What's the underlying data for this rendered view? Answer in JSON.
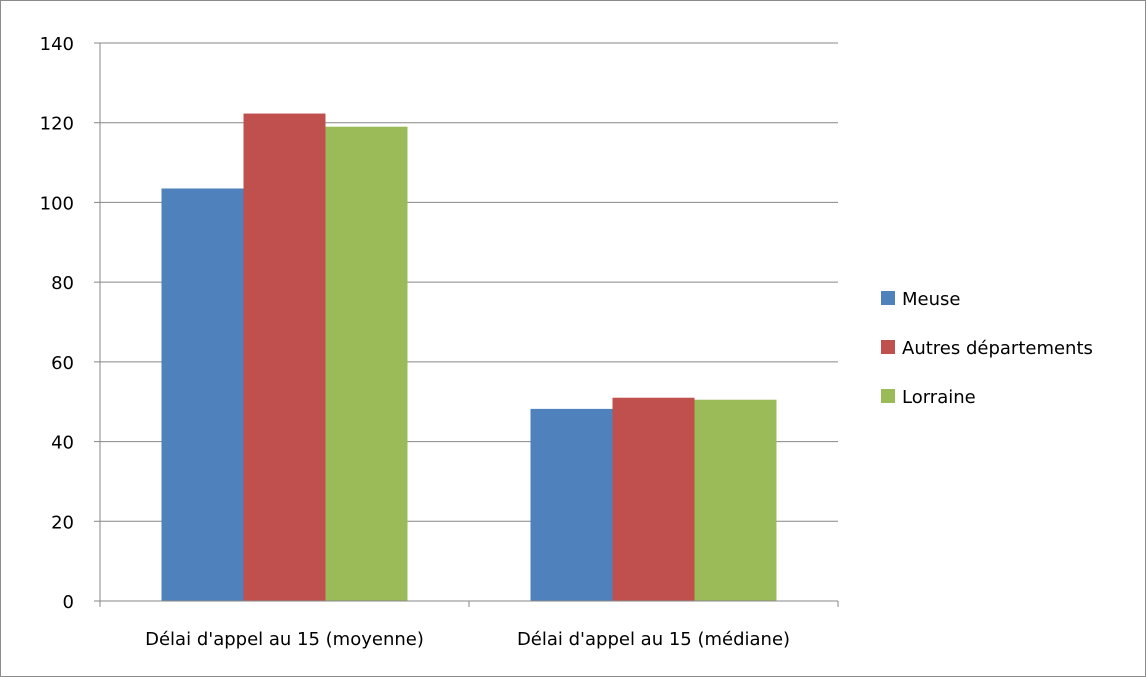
{
  "chart_data": {
    "type": "bar",
    "categories": [
      "Délai d'appel au 15 (moyenne)",
      "Délai d'appel au 15 (médiane)"
    ],
    "series": [
      {
        "name": "Meuse",
        "values": [
          103.5,
          48.2
        ],
        "color": "#4f81bd"
      },
      {
        "name": "Autres départements",
        "values": [
          122.3,
          51.0
        ],
        "color": "#c0504d"
      },
      {
        "name": "Lorraine",
        "values": [
          119.0,
          50.5
        ],
        "color": "#9bbb59"
      }
    ],
    "ylim": [
      0,
      140
    ],
    "yticks": [
      0,
      20,
      40,
      60,
      80,
      100,
      120,
      140
    ],
    "grid": true,
    "legend_position": "right",
    "title": "",
    "xlabel": "",
    "ylabel": ""
  }
}
